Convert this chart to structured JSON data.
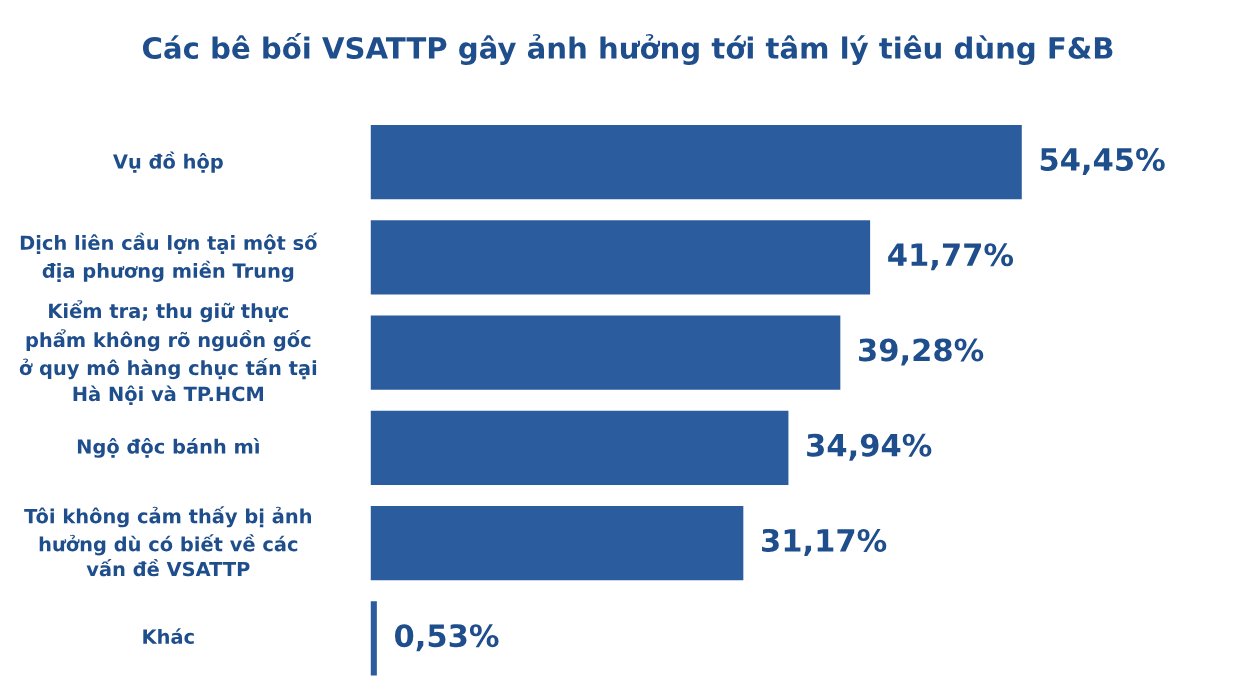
{
  "chart_data": {
    "type": "bar",
    "orientation": "horizontal",
    "title": "Các bê bối VSATTP gây ảnh hưởng tới tâm lý tiêu dùng F&B",
    "categories": [
      "Vụ đồ hộp",
      "Dịch liên cầu lợn tại một số địa phương miền Trung",
      "Kiểm tra; thu giữ thực phẩm không rõ nguồn gốc ở quy mô hàng chục tấn tại Hà Nội và TP.HCM",
      "Ngộ độc bánh mì",
      "Tôi không cảm thấy bị ảnh hưởng dù có biết về các vấn đề VSATTP",
      "Khác"
    ],
    "values": [
      54.45,
      41.77,
      39.28,
      34.94,
      31.17,
      0.53
    ],
    "value_labels": [
      "54,45%",
      "41,77%",
      "39,28%",
      "34,94%",
      "31,17%",
      "0,53%"
    ],
    "color": "#2b5c9e"
  }
}
